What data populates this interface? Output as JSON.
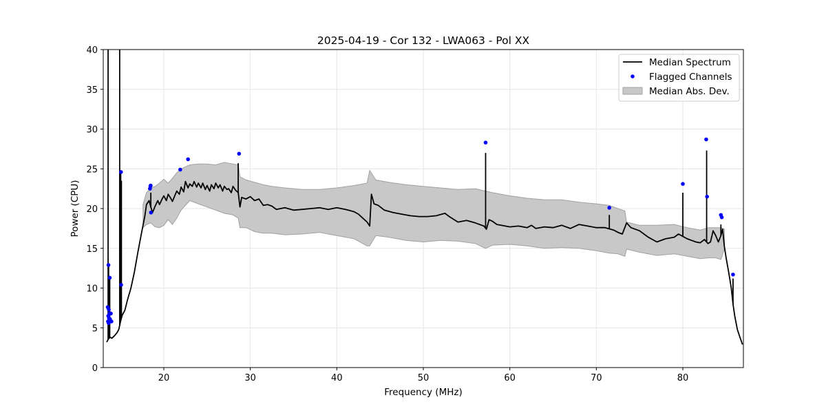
{
  "chart_data": {
    "type": "line",
    "title": "2025-04-19 - Cor 132 - LWA063 - Pol XX",
    "xlabel": "Frequency (MHz)",
    "ylabel": "Power (CPU)",
    "xlim": [
      13.0,
      87.0
    ],
    "ylim": [
      0,
      40
    ],
    "xticks": [
      20,
      30,
      40,
      50,
      60,
      70,
      80
    ],
    "yticks": [
      0,
      5,
      10,
      15,
      20,
      25,
      30,
      35,
      40
    ],
    "grid": true,
    "legend": {
      "placement": "top-right",
      "entries": [
        "Median Spectrum",
        "Flagged Channels",
        "Median Abs. Dev."
      ]
    },
    "colors": {
      "median": "#000000",
      "flagged": "#0000ff",
      "mad_fill": "#c8c8c8",
      "mad_edge": "#a0a0a0",
      "grid": "#e6e6e6"
    },
    "series": [
      {
        "name": "Median Spectrum",
        "kind": "line",
        "x": [
          13.4,
          13.6,
          13.8,
          14.0,
          14.3,
          14.6,
          14.8,
          15.0,
          15.2,
          15.5,
          15.8,
          16.2,
          16.6,
          17.0,
          17.4,
          17.8,
          18.0,
          18.3,
          18.5,
          18.7,
          19.0,
          19.3,
          19.5,
          19.8,
          20.0,
          20.3,
          20.5,
          20.8,
          21.0,
          21.3,
          21.5,
          21.8,
          22.0,
          22.3,
          22.5,
          22.8,
          23.0,
          23.3,
          23.5,
          23.8,
          24.0,
          24.3,
          24.5,
          24.8,
          25.0,
          25.3,
          25.5,
          25.8,
          26.0,
          26.3,
          26.5,
          26.8,
          27.0,
          27.3,
          27.5,
          27.8,
          28.0,
          28.3,
          28.6,
          28.8,
          29.0,
          29.5,
          30.0,
          30.5,
          31.0,
          31.5,
          32.0,
          32.5,
          33.0,
          34.0,
          35.0,
          36.0,
          37.0,
          38.0,
          39.0,
          40.0,
          41.0,
          42.0,
          42.5,
          43.0,
          43.5,
          43.8,
          44.0,
          44.3,
          44.8,
          45.5,
          46.5,
          47.5,
          48.5,
          49.5,
          50.5,
          51.5,
          52.5,
          53.0,
          54.0,
          55.0,
          56.0,
          57.0,
          57.3,
          57.6,
          58.0,
          58.5,
          59.0,
          60.0,
          61.0,
          62.0,
          62.5,
          63.0,
          64.0,
          65.0,
          66.0,
          67.0,
          68.0,
          69.0,
          70.0,
          71.0,
          72.0,
          72.5,
          73.0,
          73.5,
          74.0,
          75.0,
          76.0,
          77.0,
          78.0,
          79.0,
          79.5,
          80.0,
          80.5,
          81.0,
          81.5,
          82.0,
          82.5,
          82.9,
          83.2,
          83.5,
          83.8,
          84.1,
          84.4,
          84.6,
          84.8,
          85.0,
          85.3,
          85.6,
          85.8,
          86.0,
          86.3,
          86.6,
          86.9
        ],
        "y": [
          3.2,
          3.6,
          3.8,
          3.7,
          4.0,
          4.4,
          4.8,
          5.8,
          6.6,
          7.2,
          8.5,
          10.0,
          12.0,
          14.5,
          16.8,
          19.0,
          20.5,
          21.0,
          20.2,
          19.5,
          20.3,
          21.0,
          20.5,
          21.2,
          21.6,
          21.0,
          21.8,
          21.3,
          20.9,
          21.7,
          22.2,
          21.8,
          22.7,
          22.1,
          23.4,
          22.6,
          23.1,
          22.8,
          23.4,
          22.7,
          23.2,
          22.6,
          23.2,
          22.4,
          22.9,
          22.2,
          23.0,
          22.5,
          23.2,
          22.6,
          23.0,
          22.2,
          22.8,
          22.4,
          22.5,
          22.0,
          22.8,
          22.3,
          22.0,
          20.2,
          21.4,
          21.2,
          21.5,
          21.0,
          21.2,
          20.4,
          20.5,
          20.3,
          19.9,
          20.1,
          19.8,
          19.9,
          20.0,
          20.1,
          19.9,
          20.1,
          19.9,
          19.6,
          19.3,
          18.8,
          18.3,
          17.8,
          21.8,
          20.6,
          20.4,
          19.8,
          19.5,
          19.3,
          19.1,
          19.0,
          19.0,
          19.1,
          19.4,
          19.0,
          18.3,
          18.5,
          18.2,
          17.8,
          17.4,
          18.6,
          18.4,
          18.0,
          17.9,
          17.7,
          17.8,
          17.6,
          17.9,
          17.5,
          17.7,
          17.6,
          17.9,
          17.5,
          18.0,
          17.8,
          17.6,
          17.6,
          17.3,
          17.0,
          16.8,
          18.2,
          17.6,
          17.2,
          16.4,
          15.8,
          16.2,
          16.4,
          16.8,
          16.5,
          16.2,
          16.0,
          15.8,
          15.7,
          16.1,
          15.6,
          15.8,
          17.2,
          16.6,
          15.8,
          16.6,
          17.4,
          15.2,
          13.8,
          12.0,
          10.0,
          8.0,
          6.5,
          4.8,
          3.8,
          2.9
        ]
      },
      {
        "name": "Median Abs. Dev.",
        "kind": "band",
        "x": [
          17.6,
          18.0,
          18.5,
          19.0,
          19.5,
          20.0,
          20.5,
          21.0,
          21.5,
          22.0,
          23.0,
          24.0,
          25.0,
          26.0,
          27.0,
          28.0,
          28.6,
          28.8,
          29.5,
          30.5,
          31.5,
          32.5,
          34.0,
          36.0,
          38.0,
          40.0,
          42.0,
          43.5,
          43.8,
          44.5,
          46.0,
          48.0,
          50.0,
          52.0,
          54.0,
          56.0,
          57.2,
          58.0,
          60.0,
          62.0,
          64.0,
          66.0,
          68.0,
          70.0,
          71.5,
          72.5,
          73.3,
          73.5,
          75.0,
          77.0,
          79.0,
          80.5,
          82.0,
          83.0,
          83.8,
          84.4,
          84.8
        ],
        "upper": [
          20.5,
          22.0,
          22.6,
          22.8,
          23.2,
          23.7,
          23.2,
          23.8,
          24.5,
          25.0,
          25.5,
          25.6,
          25.6,
          25.5,
          25.8,
          25.6,
          25.5,
          24.0,
          23.6,
          23.3,
          23.0,
          22.8,
          22.6,
          22.4,
          22.4,
          22.6,
          22.9,
          23.2,
          24.8,
          23.6,
          23.3,
          23.0,
          22.8,
          22.6,
          22.4,
          22.5,
          22.2,
          22.0,
          21.6,
          21.3,
          21.1,
          21.1,
          20.8,
          20.6,
          20.4,
          20.0,
          19.7,
          18.3,
          17.9,
          17.9,
          18.0,
          17.6,
          17.3,
          17.6,
          17.6,
          17.6,
          17.4
        ],
        "lower": [
          17.6,
          18.0,
          18.2,
          17.7,
          17.6,
          17.9,
          18.6,
          18.0,
          18.8,
          19.8,
          21.0,
          20.6,
          20.2,
          19.8,
          19.4,
          19.2,
          18.8,
          17.6,
          17.6,
          17.1,
          16.9,
          16.9,
          16.7,
          16.8,
          17.0,
          16.6,
          16.2,
          15.3,
          15.3,
          16.6,
          16.4,
          16.0,
          15.8,
          16.0,
          15.9,
          15.6,
          15.0,
          15.4,
          15.5,
          15.3,
          15.0,
          15.1,
          15.0,
          14.7,
          14.4,
          14.3,
          14.0,
          14.9,
          14.5,
          14.1,
          14.3,
          14.0,
          13.7,
          13.8,
          13.8,
          13.6,
          14.9
        ]
      },
      {
        "name": "Median Spectrum",
        "kind": "spikes",
        "x": [
          13.56,
          13.62,
          13.75,
          14.9,
          15.02,
          15.1,
          18.5,
          28.6,
          57.2,
          71.5,
          80.0,
          82.75,
          84.4,
          85.8
        ],
        "y": [
          40.0,
          12.9,
          11.3,
          40.0,
          24.6,
          23.5,
          22.0,
          25.7,
          27.0,
          19.2,
          22.0,
          27.3,
          18.0,
          11.2
        ]
      },
      {
        "name": "Flagged Channels",
        "kind": "scatter",
        "x": [
          13.52,
          13.55,
          13.58,
          13.6,
          13.62,
          13.64,
          13.66,
          13.68,
          13.7,
          13.72,
          13.75,
          13.78,
          13.82,
          13.88,
          13.95,
          15.05,
          15.07,
          18.4,
          18.45,
          18.48,
          18.52,
          21.9,
          22.8,
          28.7,
          57.2,
          71.5,
          80.0,
          82.7,
          82.8,
          84.4,
          84.5,
          85.8
        ],
        "y": [
          7.6,
          5.8,
          6.5,
          12.9,
          5.6,
          7.3,
          6.2,
          5.8,
          6.0,
          6.8,
          11.3,
          6.1,
          5.9,
          6.8,
          5.8,
          24.6,
          10.4,
          22.5,
          22.8,
          22.9,
          19.5,
          24.9,
          26.2,
          26.9,
          28.3,
          20.1,
          23.1,
          28.7,
          21.5,
          19.2,
          18.9,
          11.7
        ]
      }
    ]
  }
}
